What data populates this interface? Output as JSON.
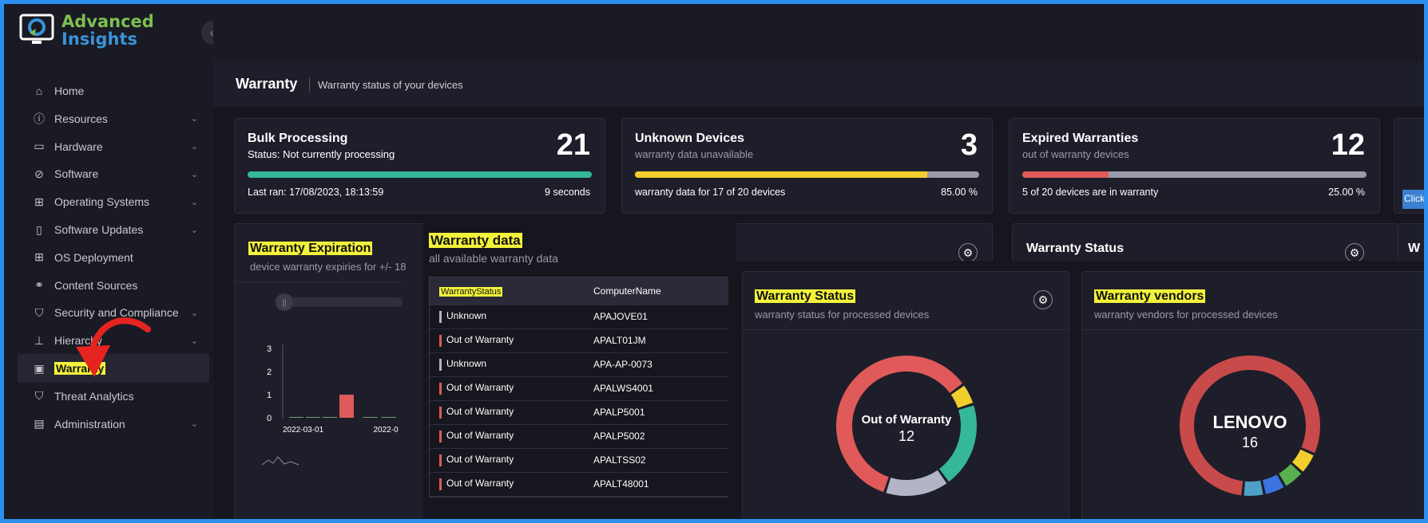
{
  "app": {
    "logo_line1": "Advanced",
    "logo_line2": "Insights",
    "collapse_icon": "«"
  },
  "sidebar": {
    "items": [
      {
        "label": "Home",
        "icon": "home-icon",
        "chev": ""
      },
      {
        "label": "Resources",
        "icon": "info-icon",
        "chev": "⌄"
      },
      {
        "label": "Hardware",
        "icon": "hardware-icon",
        "chev": "⌄"
      },
      {
        "label": "Software",
        "icon": "software-icon",
        "chev": "⌄"
      },
      {
        "label": "Operating Systems",
        "icon": "os-icon",
        "chev": "⌄"
      },
      {
        "label": "Software Updates",
        "icon": "updates-icon",
        "chev": "⌄"
      },
      {
        "label": "OS Deployment",
        "icon": "deploy-icon",
        "chev": ""
      },
      {
        "label": "Content Sources",
        "icon": "content-icon",
        "chev": ""
      },
      {
        "label": "Security and Compliance",
        "icon": "shield-icon",
        "chev": "⌄"
      },
      {
        "label": "Hierarchy",
        "icon": "hierarchy-icon",
        "chev": "⌄"
      },
      {
        "label": "Warranty",
        "icon": "warranty-icon",
        "chev": ""
      },
      {
        "label": "Threat Analytics",
        "icon": "threat-icon",
        "chev": ""
      },
      {
        "label": "Administration",
        "icon": "admin-icon",
        "chev": "⌄"
      }
    ]
  },
  "header": {
    "title": "Warranty",
    "subtitle": "Warranty status of your devices"
  },
  "kpis": [
    {
      "title": "Bulk Processing",
      "sub": "Status: Not currently processing",
      "number": "21",
      "progress": 1.0,
      "bar_color": "#35b898",
      "foot": "Last ran: 17/08/2023, 18:13:59",
      "right": "9 seconds"
    },
    {
      "title": "Unknown Devices",
      "sub": "warranty data unavailable",
      "number": "3",
      "progress": 0.85,
      "bar_color": "#f2cf2c",
      "foot": "warranty data for 17 of 20 devices",
      "right": "85.00 %"
    },
    {
      "title": "Expired Warranties",
      "sub": "out of warranty devices",
      "number": "12",
      "progress": 0.25,
      "bar_color": "#e05a5a",
      "foot": "5 of 20 devices are in warranty",
      "right": "25.00 %"
    }
  ],
  "click_tag": "Click",
  "expiration": {
    "title": "Warranty Expiration",
    "sub": "device warranty expiries for +/- 18",
    "slider_icon": "||",
    "chart_data": {
      "type": "bar",
      "x": [
        "2022-03-01",
        "",
        "",
        "",
        "",
        "2022-0"
      ],
      "values": [
        0,
        0,
        0,
        1,
        0,
        0
      ],
      "yticks": [
        "3",
        "2",
        "1",
        "0"
      ],
      "ylim": [
        0,
        3
      ]
    }
  },
  "warranty_data": {
    "title": "Warranty data",
    "sub": "all available warranty data",
    "columns": [
      "WarrantyStatus",
      "ComputerName"
    ],
    "rows": [
      {
        "status": "Unknown",
        "name": "APAJOVE01",
        "color": "#b4b4c8"
      },
      {
        "status": "Out of Warranty",
        "name": "APALT01JM",
        "color": "#e05a5a"
      },
      {
        "status": "Unknown",
        "name": "APA-AP-0073",
        "color": "#b4b4c8"
      },
      {
        "status": "Out of Warranty",
        "name": "APALWS4001",
        "color": "#e05a5a"
      },
      {
        "status": "Out of Warranty",
        "name": "APALP5001",
        "color": "#e05a5a"
      },
      {
        "status": "Out of Warranty",
        "name": "APALP5002",
        "color": "#e05a5a"
      },
      {
        "status": "Out of Warranty",
        "name": "APALTSS02",
        "color": "#e05a5a"
      },
      {
        "status": "Out of Warranty",
        "name": "APALT48001",
        "color": "#e05a5a"
      }
    ]
  },
  "status_bg": {
    "title": "Warranty Status",
    "w_partial": "W"
  },
  "status_chart": {
    "title": "Warranty Status",
    "sub": "warranty status for processed devices",
    "center_label": "Out of Warranty",
    "center_value": "12",
    "chart_data": {
      "type": "pie",
      "slices": [
        {
          "label": "Out of Warranty",
          "value": 12,
          "color": "#e05a5a"
        },
        {
          "label": "",
          "value": 1,
          "color": "#f2cf2c"
        },
        {
          "label": "",
          "value": 4,
          "color": "#35b898"
        },
        {
          "label": "",
          "value": 3,
          "color": "#b4b4c8"
        }
      ]
    }
  },
  "vendors_chart": {
    "title": "Warranty vendors",
    "sub": "warranty vendors for processed devices",
    "center_label": "LENOVO",
    "center_value": "16",
    "chart_data": {
      "type": "pie",
      "slices": [
        {
          "label": "LENOVO",
          "value": 16,
          "color": "#c94a4a"
        },
        {
          "label": "",
          "value": 1,
          "color": "#f2cf2c"
        },
        {
          "label": "",
          "value": 1,
          "color": "#58b050"
        },
        {
          "label": "",
          "value": 1,
          "color": "#3b73e0"
        },
        {
          "label": "",
          "value": 1,
          "color": "#4ea0c8"
        }
      ]
    }
  }
}
